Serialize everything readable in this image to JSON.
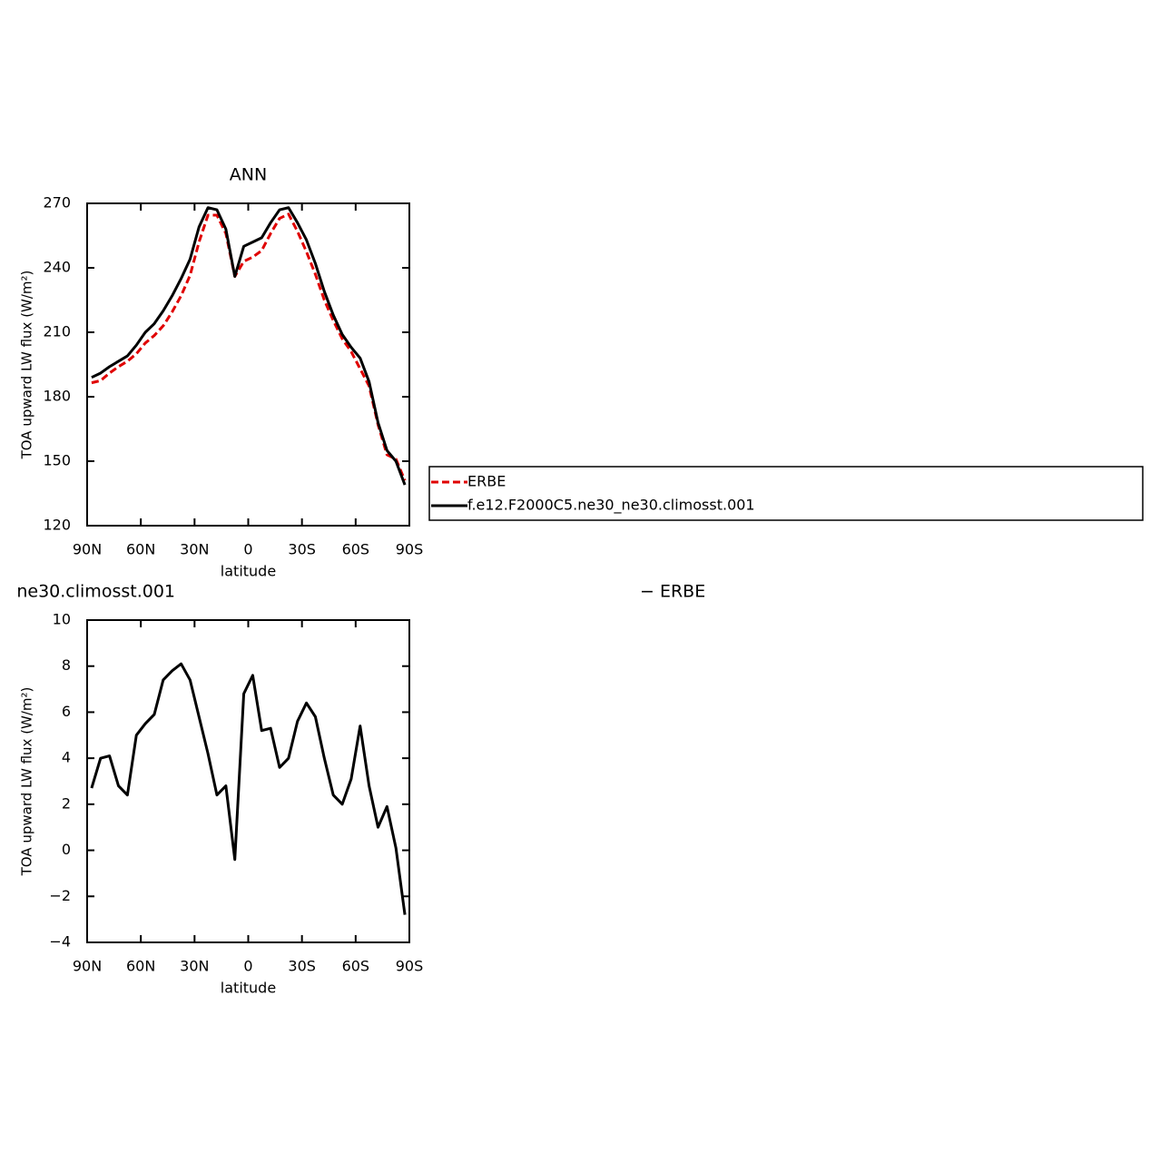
{
  "chart_data": [
    {
      "type": "line",
      "title": "ANN",
      "x_label": "latitude",
      "y_label": "TOA upward LW flux (W/m²)",
      "x": [
        87.5,
        82.5,
        77.5,
        72.5,
        67.5,
        62.5,
        57.5,
        52.5,
        47.5,
        42.5,
        37.5,
        32.5,
        27.5,
        22.5,
        17.5,
        12.5,
        7.5,
        2.5,
        -2.5,
        -7.5,
        -12.5,
        -17.5,
        -22.5,
        -27.5,
        -32.5,
        -37.5,
        -42.5,
        -47.5,
        -52.5,
        -57.5,
        -62.5,
        -67.5,
        -72.5,
        -77.5,
        -82.5,
        -87.5
      ],
      "series": [
        {
          "name": "ERBE",
          "color": "#e00000",
          "dash": true,
          "values": [
            186.5,
            187.5,
            191,
            194,
            196.5,
            200,
            205,
            208.5,
            213,
            219.5,
            227,
            236.5,
            252,
            264.5,
            264.5,
            256,
            236,
            243,
            245,
            248,
            256,
            263,
            265,
            257,
            247.5,
            237,
            225,
            215.5,
            207,
            201,
            193,
            185,
            167,
            153,
            151,
            141
          ]
        },
        {
          "name": "f.e12.F2000C5.ne30_ne30.climosst.001",
          "color": "#000000",
          "dash": false,
          "values": [
            189,
            191,
            194,
            196.5,
            199,
            204,
            210,
            214,
            220,
            227,
            235,
            244,
            259,
            268,
            267,
            258,
            236,
            250,
            252,
            254,
            261,
            267,
            268,
            261,
            253,
            242,
            229,
            218,
            209,
            203,
            198,
            187,
            168,
            155,
            150,
            139
          ]
        }
      ],
      "xlim": [
        90,
        -90
      ],
      "xticks": [
        {
          "value": 90,
          "label": "90N"
        },
        {
          "value": 60,
          "label": "60N"
        },
        {
          "value": 30,
          "label": "30N"
        },
        0,
        {
          "value": -30,
          "label": "30S"
        },
        {
          "value": -60,
          "label": "60S"
        },
        {
          "value": -90,
          "label": "90S"
        }
      ],
      "ylim": [
        120,
        270
      ],
      "yticks": [
        120,
        150,
        180,
        210,
        240,
        270
      ],
      "legend": "outside-right"
    },
    {
      "type": "line",
      "title": "ne30.climosst.001",
      "right_title": "− ERBE",
      "x_label": "latitude",
      "y_label": "TOA upward LW flux (W/m²)",
      "x": [
        87.5,
        82.5,
        77.5,
        72.5,
        67.5,
        62.5,
        57.5,
        52.5,
        47.5,
        42.5,
        37.5,
        32.5,
        27.5,
        22.5,
        17.5,
        12.5,
        7.5,
        2.5,
        -2.5,
        -7.5,
        -12.5,
        -17.5,
        -22.5,
        -27.5,
        -32.5,
        -37.5,
        -42.5,
        -47.5,
        -52.5,
        -57.5,
        -62.5,
        -67.5,
        -72.5,
        -77.5,
        -82.5,
        -87.5
      ],
      "series": [
        {
          "color": "#000000",
          "dash": false,
          "values": [
            2.7,
            4.0,
            4.1,
            2.8,
            2.4,
            5.0,
            5.5,
            5.9,
            7.4,
            7.8,
            8.1,
            7.4,
            5.8,
            4.2,
            2.4,
            2.8,
            -0.4,
            6.8,
            7.6,
            5.2,
            5.3,
            3.6,
            4.0,
            5.6,
            6.4,
            5.8,
            4.0,
            2.4,
            2.0,
            3.1,
            5.4,
            2.8,
            1.0,
            1.9,
            0.1,
            -2.8
          ]
        }
      ],
      "xlim": [
        90,
        -90
      ],
      "xticks": [
        {
          "value": 90,
          "label": "90N"
        },
        {
          "value": 60,
          "label": "60N"
        },
        {
          "value": 30,
          "label": "30N"
        },
        0,
        {
          "value": -30,
          "label": "30S"
        },
        {
          "value": -60,
          "label": "60S"
        },
        {
          "value": -90,
          "label": "90S"
        }
      ],
      "ylim": [
        -4,
        10
      ],
      "yticks": [
        {
          "value": -4,
          "label": "−4"
        },
        {
          "value": -2,
          "label": "−2"
        },
        0,
        2,
        4,
        6,
        8,
        10
      ]
    }
  ]
}
